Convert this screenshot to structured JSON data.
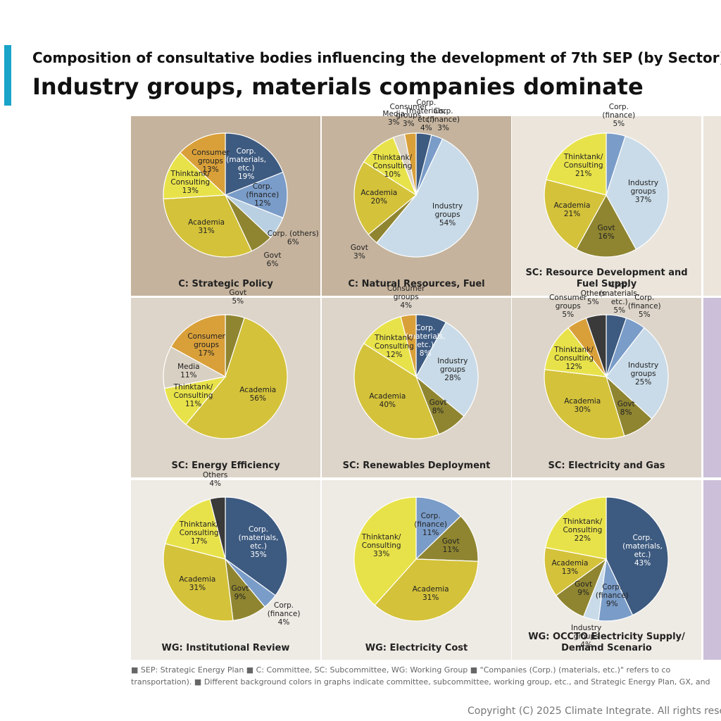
{
  "header": {
    "subtitle": "Composition of consultative bodies influencing the development of 7th SEP (by Sector)",
    "title": "Industry groups, materials companies dominate"
  },
  "chart_data": [
    {
      "type": "pie",
      "title": "C: Strategic Policy",
      "background": "#c5b39d",
      "categories": [
        "Corp. (materials, etc.)",
        "Corp. (finance)",
        "Corp. (others)",
        "Govt",
        "Academia",
        "Thinktank/ Consulting",
        "Consumer groups"
      ],
      "values": [
        19,
        12,
        6,
        6,
        31,
        13,
        13
      ],
      "value_labels": [
        "19%",
        "12%",
        "6%",
        "6%",
        "31%",
        "13%",
        "13%"
      ],
      "colors": [
        "#3d5a80",
        "#7a9cc8",
        "#b9d0e2",
        "#8f8531",
        "#d4c23a",
        "#e8e24a",
        "#d9a03a"
      ]
    },
    {
      "type": "pie",
      "title": "C: Natural Resources, Fuel",
      "background": "#c5b39d",
      "categories": [
        "Corp. (materials, etc.)",
        "Corp. (finance)",
        "Industry groups",
        "Govt",
        "Academia",
        "Thinktank/ Consulting",
        "Media",
        "Consumer groups"
      ],
      "values": [
        4,
        3,
        54,
        3,
        20,
        10,
        3,
        3
      ],
      "value_labels": [
        "4%",
        "3%",
        "54%",
        "3%",
        "20%",
        "10%",
        "3%",
        "3%"
      ],
      "colors": [
        "#3d5a80",
        "#7a9cc8",
        "#c9dbe8",
        "#8f8531",
        "#d4c23a",
        "#e8e24a",
        "#d8d0c2",
        "#d9a03a"
      ]
    },
    {
      "type": "pie",
      "title": "SC: Resource Development and Fuel Supply",
      "background": "#ebe5dc",
      "categories": [
        "Corp. (finance)",
        "Industry groups",
        "Govt",
        "Academia",
        "Thinktank/ Consulting"
      ],
      "values": [
        5,
        37,
        16,
        21,
        21
      ],
      "value_labels": [
        "5%",
        "37%",
        "16%",
        "21%",
        "21%"
      ],
      "colors": [
        "#7a9cc8",
        "#c9dbe8",
        "#8f8531",
        "#d4c23a",
        "#e8e24a"
      ]
    },
    {
      "type": "pie",
      "title": "SC: Energy Efficiency",
      "background": "#ddd5ca",
      "categories": [
        "Govt",
        "Academia",
        "Thinktank/ Consulting",
        "Media",
        "Consumer groups"
      ],
      "values": [
        5,
        56,
        11,
        11,
        17
      ],
      "value_labels": [
        "5%",
        "56%",
        "11%",
        "11%",
        "17%"
      ],
      "colors": [
        "#8f8531",
        "#d4c23a",
        "#e8e24a",
        "#d8d0c2",
        "#d9a03a"
      ]
    },
    {
      "type": "pie",
      "title": "SC: Renewables Deployment",
      "background": "#ddd5ca",
      "categories": [
        "Corp. (materials, etc.)",
        "Industry groups",
        "Govt",
        "Academia",
        "Thinktank/ Consulting",
        "Consumer groups"
      ],
      "values": [
        8,
        28,
        8,
        40,
        12,
        4
      ],
      "value_labels": [
        "8%",
        "28%",
        "8%",
        "40%",
        "12%",
        "4%"
      ],
      "colors": [
        "#3d5a80",
        "#c9dbe8",
        "#8f8531",
        "#d4c23a",
        "#e8e24a",
        "#d9a03a"
      ]
    },
    {
      "type": "pie",
      "title": "SC: Electricity and Gas",
      "background": "#ddd5ca",
      "categories": [
        "Corp. (materials, etc.)",
        "Corp. (finance)",
        "Industry groups",
        "Govt",
        "Academia",
        "Thinktank/ Consulting",
        "Consumer groups",
        "Others"
      ],
      "values": [
        5,
        5,
        25,
        8,
        30,
        12,
        5,
        5
      ],
      "value_labels": [
        "5%",
        "5%",
        "25%",
        "8%",
        "30%",
        "12%",
        "5%",
        "5%"
      ],
      "colors": [
        "#3d5a80",
        "#7a9cc8",
        "#c9dbe8",
        "#8f8531",
        "#d4c23a",
        "#e8e24a",
        "#d9a03a",
        "#3a3a3a"
      ]
    },
    {
      "type": "pie",
      "title": "WG: Institutional Review",
      "background": "#eeeae4",
      "categories": [
        "Corp. (materials, etc.)",
        "Corp. (finance)",
        "Govt",
        "Academia",
        "Thinktank/ Consulting",
        "Others"
      ],
      "values": [
        35,
        4,
        9,
        31,
        17,
        4
      ],
      "value_labels": [
        "35%",
        "4%",
        "9%",
        "31%",
        "17%",
        "4%"
      ],
      "colors": [
        "#3d5a80",
        "#7a9cc8",
        "#8f8531",
        "#d4c23a",
        "#e8e24a",
        "#3a3a3a"
      ]
    },
    {
      "type": "pie",
      "title": "WG: Electricity Cost",
      "background": "#eeeae4",
      "categories": [
        "Corp. (finance)",
        "Govt",
        "Academia",
        "Thinktank/ Consulting"
      ],
      "values": [
        11,
        11,
        31,
        33
      ],
      "value_labels": [
        "11%",
        "11%",
        "31%",
        "33%"
      ],
      "colors": [
        "#7a9cc8",
        "#8f8531",
        "#d4c23a",
        "#e8e24a"
      ]
    },
    {
      "type": "pie",
      "title": "WG: OCCTO Electricity Supply/ Demand Scenario",
      "background": "#eeeae4",
      "categories": [
        "Corp. (materials, etc.)",
        "Corp. (finance)",
        "Industry groups",
        "Govt",
        "Academia",
        "Thinktank/ Consulting"
      ],
      "values": [
        43,
        9,
        4,
        9,
        13,
        22
      ],
      "value_labels": [
        "43%",
        "9%",
        "4%",
        "9%",
        "13%",
        "22%"
      ],
      "colors": [
        "#3d5a80",
        "#7a9cc8",
        "#c9dbe8",
        "#8f8531",
        "#d4c23a",
        "#e8e24a"
      ]
    }
  ],
  "footnotes": [
    "■ SEP: Strategic Energy Plan   ■ C: Committee, SC: Subcommittee, WG: Working Group   ■ \"Companies (Corp.) (materials, etc.)\" refers to co",
    "transportation).   ■ Different background colors in graphs indicate committee, subcommittee, working group, etc., and Strategic Energy Plan, GX, and"
  ],
  "copyright": "Copyright (C) 2025 Climate Integrate. All rights rese"
}
